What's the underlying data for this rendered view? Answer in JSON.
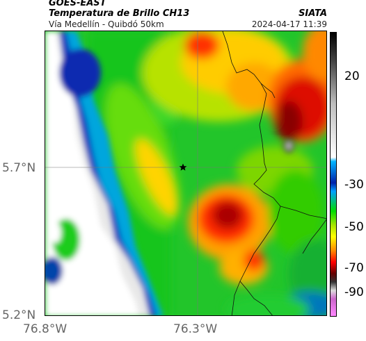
{
  "header": {
    "satellite": "GOES-EAST",
    "product": "Temperatura de Brillo CH13",
    "route": "Vía Medellín - Quibdó 50km",
    "agency": "SIATA",
    "timestamp": "2024-04-17 11:39"
  },
  "map": {
    "latitude_ticks": [
      "5.7°N",
      "5.2°N"
    ],
    "longitude_ticks": [
      "76.8°W",
      "76.3°W"
    ],
    "marker": "star"
  },
  "colorbar": {
    "ticks": [
      "20",
      "-30",
      "-50",
      "-70",
      "-90"
    ],
    "colors": [
      "#000000",
      "#bdbdbd",
      "#ffffff",
      "#00b4ff",
      "#0022aa",
      "#00dd00",
      "#ffff00",
      "#ff8800",
      "#ff0000",
      "#660000",
      "#333333",
      "#dddddd",
      "#cc66cc",
      "#ff88ff"
    ]
  }
}
